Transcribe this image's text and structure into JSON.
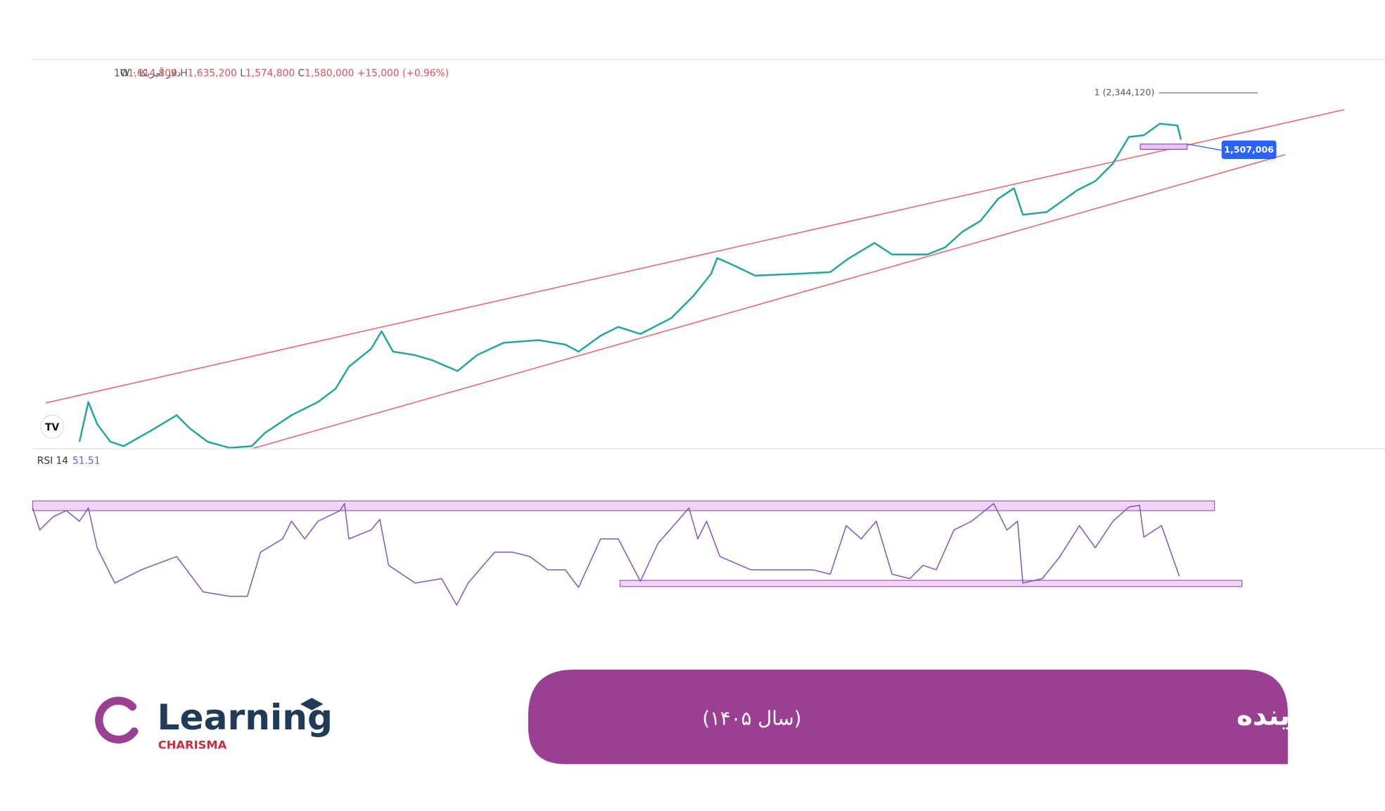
{
  "header": {
    "symbol": "دلار آمریکا · 1W",
    "ohlc": [
      {
        "key": "O",
        "value": "1,614,800"
      },
      {
        "key": "H",
        "value": "1,635,200"
      },
      {
        "key": "L",
        "value": "1,574,800"
      },
      {
        "key": "C",
        "value": "1,580,000"
      }
    ],
    "change": "+15,000 (+0.96%)"
  },
  "chart": {
    "level_label": "1 (2,344,120)",
    "price_label": "1,507,006",
    "logo": "TV"
  },
  "rsi": {
    "label": "RSI 14",
    "value": "51.51"
  },
  "banner": {
    "title": "تحلیل تکنیکال قیمت دلار در چند روز آینده",
    "subtitle": "(سال ۱۴۰۵)"
  },
  "logo": {
    "name": "Learning",
    "tagline": "CHARISMA"
  }
}
